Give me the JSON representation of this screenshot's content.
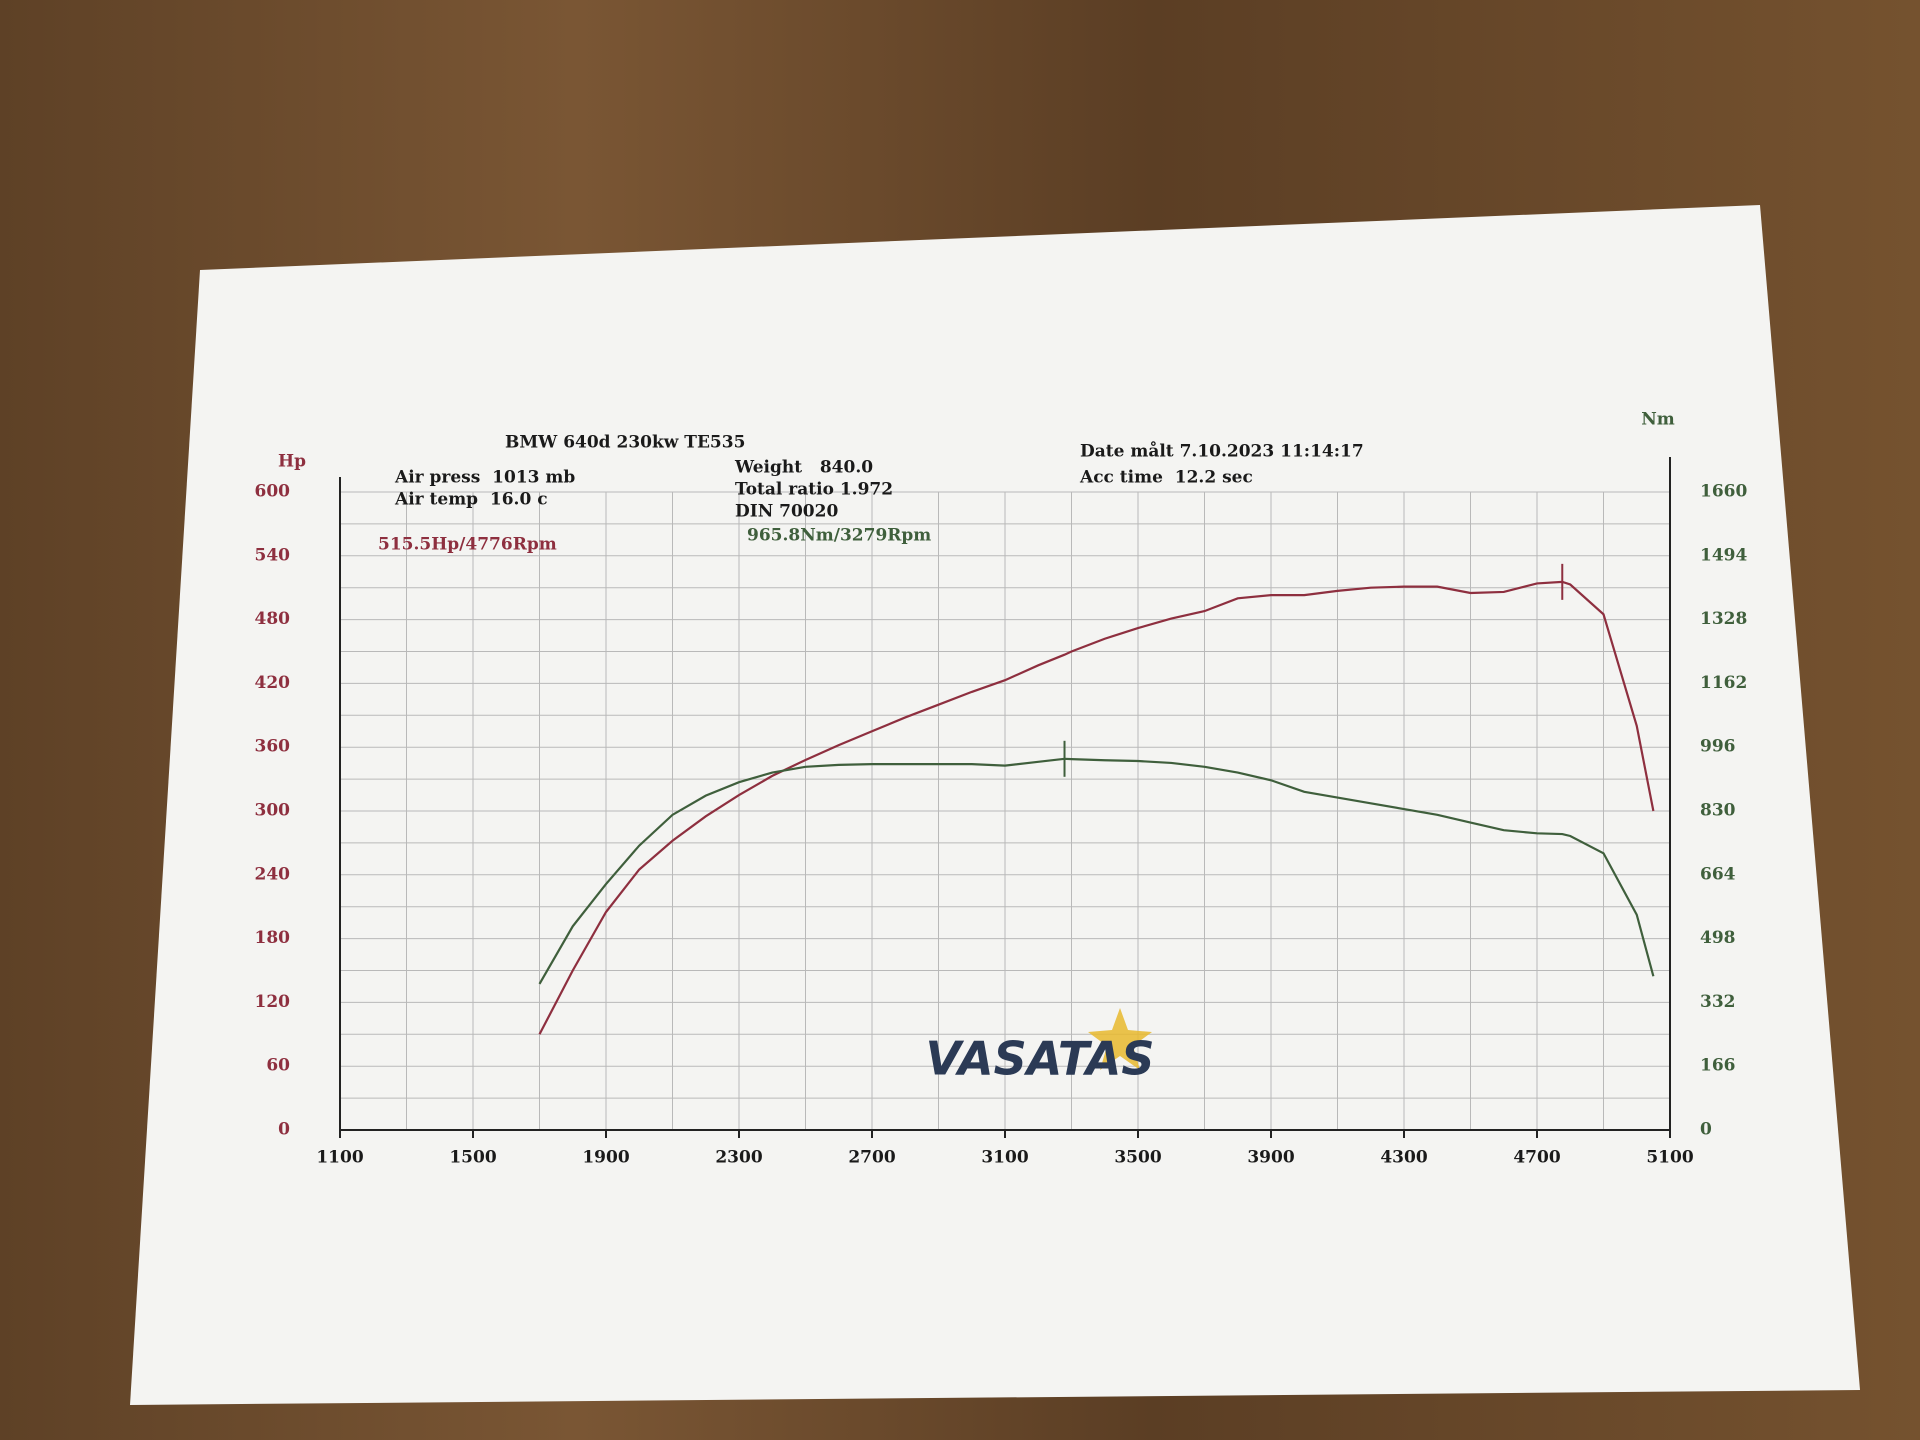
{
  "chart_data": {
    "type": "line",
    "title": "BMW 640d 230kw TE535",
    "info_left": [
      "Air press  1013 mb",
      "Air temp  16.0 c"
    ],
    "info_mid": [
      "Weight   840.0",
      "Total ratio 1.972",
      "DIN 70020"
    ],
    "info_right": [
      "Date målt 7.10.2023 11:14:17",
      "Acc time  12.2 sec"
    ],
    "annotations": [
      "515.5Hp/4776Rpm",
      "965.8Nm/3279Rpm"
    ],
    "logo": "VASATAS",
    "ylabel": "Hp",
    "y2label": "Nm",
    "x": [
      1700,
      1800,
      1900,
      2000,
      2100,
      2200,
      2300,
      2400,
      2500,
      2600,
      2700,
      2800,
      2900,
      3000,
      3100,
      3200,
      3279,
      3300,
      3400,
      3500,
      3600,
      3700,
      3800,
      3900,
      4000,
      4100,
      4200,
      4300,
      4400,
      4500,
      4600,
      4700,
      4776,
      4800,
      4900,
      5000,
      5050
    ],
    "series": [
      {
        "name": "Hp",
        "color": "#8e2f3f",
        "values": [
          90,
          150,
          205,
          245,
          272,
          295,
          315,
          333,
          348,
          362,
          375,
          388,
          400,
          412,
          423,
          437,
          447,
          450,
          462,
          472,
          481,
          488,
          500,
          503,
          503,
          507,
          510,
          511,
          511,
          505,
          506,
          514,
          515.5,
          513,
          485,
          380,
          300
        ]
      },
      {
        "name": "Nm",
        "color": "#3f5f3c",
        "axis": "y2",
        "values": [
          380,
          530,
          640,
          740,
          820,
          870,
          905,
          930,
          945,
          950,
          952,
          952,
          952,
          952,
          948,
          958,
          965.8,
          965,
          962,
          960,
          955,
          945,
          930,
          910,
          880,
          865,
          850,
          835,
          820,
          800,
          780,
          772,
          770,
          765,
          720,
          560,
          400
        ]
      }
    ],
    "xlim": [
      1100,
      5100
    ],
    "xticks": [
      1100,
      1500,
      1900,
      2300,
      2700,
      3100,
      3500,
      3900,
      4300,
      4700,
      5100
    ],
    "x_minor_ticks": [
      1300,
      1700,
      2100,
      2500,
      2900,
      3300,
      3700,
      4100,
      4500,
      4900
    ],
    "ylim": [
      0,
      600
    ],
    "yticks": [
      0,
      60,
      120,
      180,
      240,
      300,
      360,
      420,
      480,
      540,
      600
    ],
    "y_minor_ticks": [
      30,
      90,
      150,
      210,
      270,
      330,
      390,
      450,
      510,
      570
    ],
    "y2lim": [
      0,
      1660
    ],
    "y2ticks": [
      0,
      166,
      332,
      498,
      664,
      830,
      996,
      1162,
      1328,
      1494,
      1660
    ],
    "grid": true
  }
}
